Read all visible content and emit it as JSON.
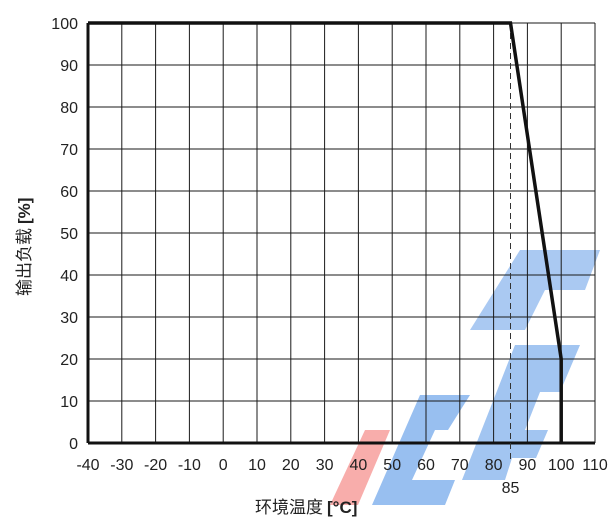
{
  "chart_data": {
    "type": "line",
    "xlabel": "环境温度",
    "xlabel_unit": "[°C]",
    "ylabel": "输出负载",
    "ylabel_unit": "[%]",
    "xlim": [
      -40,
      110
    ],
    "ylim": [
      0,
      100
    ],
    "x_ticks": [
      -40,
      -30,
      -20,
      -10,
      0,
      10,
      20,
      30,
      40,
      50,
      60,
      70,
      80,
      90,
      100,
      110
    ],
    "y_ticks": [
      0,
      10,
      20,
      30,
      40,
      50,
      60,
      70,
      80,
      90,
      100
    ],
    "grid": true,
    "series": [
      {
        "x": [
          -40,
          85,
          100,
          100
        ],
        "y": [
          100,
          100,
          20,
          0
        ],
        "color": "#111111"
      }
    ],
    "annotations": [
      {
        "type": "vline-dashed",
        "x": 85,
        "label": "85"
      }
    ],
    "watermark_colors": [
      "#e8342f",
      "#1f6fd6"
    ]
  }
}
